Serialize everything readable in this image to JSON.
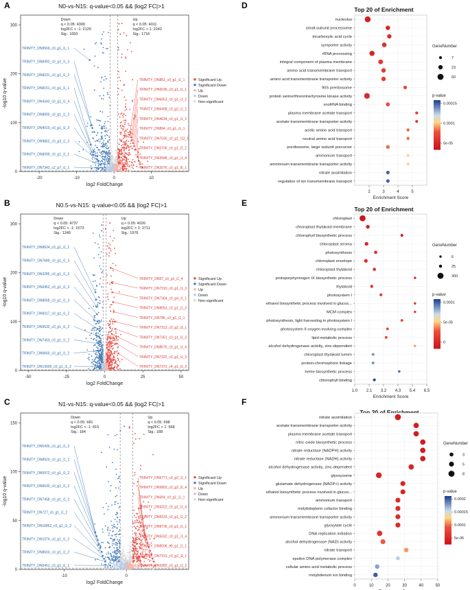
{
  "panel_letters": [
    "A",
    "B",
    "C",
    "D",
    "E",
    "F"
  ],
  "chart_data": [
    {
      "type": "scatter",
      "panel": "A",
      "title": "N0-vs-N15: q-value<0.05 && |log2 FC|>1",
      "xlabel": "log2 FoldChange",
      "ylabel": "-log10 q-value",
      "xlim": [
        -25,
        20
      ],
      "ylim": [
        0,
        320
      ],
      "xticks": [
        -20,
        -10,
        0,
        10
      ],
      "yticks": [
        0,
        100,
        200,
        300
      ],
      "qline": 1.3,
      "fc_cut": 1,
      "max_y": 305,
      "stats": {
        "down": [
          "Down",
          "q < 0.05: 4300",
          "log2FC < -1: 2129",
          "Sig.: 1650"
        ],
        "up": [
          "Up",
          "q < 0.05: 4011",
          "log2FC > 1: 2242",
          "Sig.: 1716"
        ]
      },
      "legend": [
        "Significant Up",
        "Significant Down",
        "Up",
        "Down",
        "Non-significant"
      ],
      "labels_down": [
        {
          "name": "TRINITY_DN9569_c0_g1_i1_1",
          "x": -6.5,
          "y": 228
        },
        {
          "name": "TRINITY_DN8492_c0_g2_i1_3",
          "x": -6.0,
          "y": 95
        },
        {
          "name": "TRINITY_DN8231_c0_g1_i1_2",
          "x": -5.8,
          "y": 89
        },
        {
          "name": "TRINITY_DN8151_c0_g1_i1_1",
          "x": -6.2,
          "y": 55
        },
        {
          "name": "TRINITY_DN4343_c0_g1_i1_4",
          "x": -5.5,
          "y": 40
        },
        {
          "name": "TRINITY_DN8895_c0_g1_i1_3",
          "x": -5.5,
          "y": 34
        },
        {
          "name": "TRINITY_DN4015_c0_g1_i1_3",
          "x": -4.5,
          "y": 25
        },
        {
          "name": "TRINITY_DN9862_c0_g3_i1_3",
          "x": -4.2,
          "y": 22
        },
        {
          "name": "TRINITY_DN8099_c0_g1_i1_1",
          "x": -3.6,
          "y": 14
        },
        {
          "name": "TRINITY_DN7342_c2_g7_i1_1",
          "x": -3.0,
          "y": 7
        }
      ],
      "labels_up": [
        {
          "name": "TRINITY_DN881_c0_g1_i1_1",
          "x": 4.2,
          "y": 75
        },
        {
          "name": "TRINITY_DN6036_c0_g1_i1_1",
          "x": 4.6,
          "y": 70
        },
        {
          "name": "TRINITY_DN6653_c0_g1_i1_2",
          "x": 4.8,
          "y": 64
        },
        {
          "name": "TRINITY_DN6408_c0_g2_i1_2",
          "x": 5.1,
          "y": 58
        },
        {
          "name": "TRINITY_DN4634_c0_g1_i1_2",
          "x": 5.4,
          "y": 52
        },
        {
          "name": "TRINITY_DN894_c0_g1_i1_1",
          "x": 5.8,
          "y": 45
        },
        {
          "name": "TRINITY_DN7030_c0_g1_i13_1",
          "x": 6.3,
          "y": 30
        },
        {
          "name": "TRINITY_DN5706_c0_g1_i2_2",
          "x": 6.6,
          "y": 22
        },
        {
          "name": "TRINITY_DN3588_c0_g1_i1_4",
          "x": 7.0,
          "y": 15
        },
        {
          "name": "TRINITY_DN3076_c0_g1_i5_1",
          "x": 7.6,
          "y": 8
        }
      ]
    },
    {
      "type": "scatter",
      "panel": "B",
      "title": "N0.5-vs-N15: q-value<0.05 && |log2 FC|>1",
      "xlabel": "log2 FoldChange",
      "ylabel": "-log10 q-value",
      "xlim": [
        -55,
        55
      ],
      "ylim": [
        0,
        320
      ],
      "xticks": [
        -50,
        -25,
        0,
        25,
        50
      ],
      "yticks": [
        0,
        100,
        200,
        300
      ],
      "qline": 1.3,
      "fc_cut": 1,
      "max_y": 305,
      "stats": {
        "down": [
          "Down",
          "q < 0.05: 4737",
          "log2FC < -1: 1573",
          "Sig.: 1245"
        ],
        "up": [
          "Up",
          "q < 0.05: 4026",
          "log2FC > 1: 2711",
          "Sig.: 1976"
        ]
      },
      "legend": [
        "Significant Up",
        "Significant Down",
        "Up",
        "Down",
        "Non-significant"
      ],
      "labels_down": [
        {
          "name": "TRINITY_DN8624_c0_g1_i1_1",
          "x": -6.0,
          "y": 160
        },
        {
          "name": "TRINITY_DN7689_c0_g1_i1_3",
          "x": -5.5,
          "y": 145
        },
        {
          "name": "TRINITY_DN3285_c0_g1_i1_2",
          "x": -5.2,
          "y": 130
        },
        {
          "name": "TRINITY_DN6452_c0_g1_i1_3",
          "x": -5.0,
          "y": 115
        },
        {
          "name": "TRINITY_DN8068_c0_g1_i1_3",
          "x": -4.8,
          "y": 100
        },
        {
          "name": "TRINITY_DN6017_c0_g1_i1_2",
          "x": -4.6,
          "y": 85
        },
        {
          "name": "TRINITY_DN5632_c0_g1_i1_2",
          "x": -4.4,
          "y": 70
        },
        {
          "name": "TRINITY_DN7453_c0_g1_i1_2",
          "x": -4.2,
          "y": 55
        },
        {
          "name": "TRINITY_DN6660_c0_g1_i1_2",
          "x": -3.8,
          "y": 40
        },
        {
          "name": "TRINITY_DN13006_c0_g1_i1_2",
          "x": -3.4,
          "y": 8
        }
      ],
      "labels_up": [
        {
          "name": "TRINITY_DN57_c0_g1_i1_4",
          "x": 4.0,
          "y": 210
        },
        {
          "name": "TRINITY_DN7310_c0_g1_i1_3",
          "x": 4.5,
          "y": 180
        },
        {
          "name": "TRINITY_DN7364_c0_g4_i1_1",
          "x": 5.0,
          "y": 160
        },
        {
          "name": "TRINITY_DN8053_c0_g1_i1_3",
          "x": 5.5,
          "y": 140
        },
        {
          "name": "TRINITY_DN786_c0_g1_i1_1",
          "x": 6.0,
          "y": 120
        },
        {
          "name": "TRINITY_DN7313_c0_g2_i3_1",
          "x": 6.5,
          "y": 100
        },
        {
          "name": "TRINITY_DN7351_c0_g1_i1_3",
          "x": 7.0,
          "y": 85
        },
        {
          "name": "TRINITY_DN8676_c0_g1_i1_4",
          "x": 7.5,
          "y": 70
        },
        {
          "name": "TRINITY_DN7322_c0_g1_i1_3",
          "x": 8.0,
          "y": 55
        },
        {
          "name": "TRINITY_DN7372_c4_g1_i3_3",
          "x": 9.0,
          "y": 35
        }
      ]
    },
    {
      "type": "scatter",
      "panel": "C",
      "title": "N1-vs-N15: q-value<0.05 && |log2 FC|>1",
      "xlabel": "log2 FoldChange",
      "ylabel": "-log10 q-value",
      "xlim": [
        -17,
        10
      ],
      "ylim": [
        0,
        160
      ],
      "xticks": [
        -10,
        0
      ],
      "yticks": [
        0,
        50,
        100,
        150
      ],
      "qline": 1.3,
      "fc_cut": 1,
      "max_y": 150,
      "stats": {
        "down": [
          "Down",
          "q < 0.05: 681",
          "log2FC < -1: 815",
          "Sig.: 184"
        ],
        "up": [
          "Up",
          "q < 0.05: 698",
          "log2FC > 1: 668",
          "Sig.: 188"
        ]
      },
      "legend": [
        "Significant Up",
        "Significant Down",
        "Up",
        "Down",
        "Non-significant"
      ],
      "labels_down": [
        {
          "name": "TRINITY_DN5435_c0_g1_i1_3",
          "x": -5.0,
          "y": 38
        },
        {
          "name": "TRINITY_DN8924_c0_g1_i1_2",
          "x": -4.8,
          "y": 34
        },
        {
          "name": "TRINITY_DN5972_c0_g1_i1_2",
          "x": -4.6,
          "y": 30
        },
        {
          "name": "TRINITY_DN6630_c0_g1_i1_2",
          "x": -4.4,
          "y": 26
        },
        {
          "name": "TRINITY_DN7458_c0_g1_i1_2",
          "x": -4.2,
          "y": 22
        },
        {
          "name": "TRINITY_DN727_c0_g1_i1_2",
          "x": -4.0,
          "y": 18
        },
        {
          "name": "TRINITY_DN10862_c0_g1_i1_2",
          "x": -3.8,
          "y": 14
        },
        {
          "name": "TRINITY_DN1074_c0_g1_i1_2",
          "x": -3.6,
          "y": 11
        },
        {
          "name": "TRINITY_DN8603_c0_g1_i1_2",
          "x": -3.4,
          "y": 8
        },
        {
          "name": "TRINITY_DN6401_c0_g1_i1_1",
          "x": -2.6,
          "y": 4
        }
      ],
      "labels_up": [
        {
          "name": "TRINITY_DN5771_c0_g2_i1_1",
          "x": 2.8,
          "y": 40
        },
        {
          "name": "TRINITY_DN5803_c0_g2_i2_4",
          "x": 3.0,
          "y": 35
        },
        {
          "name": "TRINITY_DN694_c0_g1_i1_1",
          "x": 3.2,
          "y": 31
        },
        {
          "name": "TRINITY_DN4222_c0_g1_i1_4",
          "x": 3.4,
          "y": 27
        },
        {
          "name": "TRINITY_DN5533_c0_g1_i1_2",
          "x": 3.6,
          "y": 23
        },
        {
          "name": "TRINITY_DN8736_c0_g1_i1_1",
          "x": 3.8,
          "y": 19
        },
        {
          "name": "TRINITY_DN5032_c0_g1_i1_4",
          "x": 4.0,
          "y": 15
        },
        {
          "name": "TRINITY_DN8506_c0_g1_i1_1",
          "x": 4.2,
          "y": 11
        },
        {
          "name": "TRINITY_DN7313_c0_g2_i3_1",
          "x": 4.4,
          "y": 8
        },
        {
          "name": "TRINITY_DN3282_c0_g1_i1_2",
          "x": 4.6,
          "y": 4
        }
      ]
    },
    {
      "type": "bubble",
      "panel": "D",
      "title": "Top 20 of Enrichment",
      "xlabel": "Enrichment Score",
      "xlim": [
        1,
        6
      ],
      "xticks": [
        2,
        3,
        4,
        5
      ],
      "size_legend_title": "GeneNumber",
      "size_legend": [
        7,
        23,
        60
      ],
      "color_legend_title": "p-value",
      "color_ticks": [
        "0.00015",
        "0.0001",
        "5e-05"
      ],
      "color_range": [
        0,
        0.00018
      ],
      "terms": [
        {
          "term": "nucleolus",
          "score": 1.9,
          "genes": 55,
          "p": 1e-05
        },
        {
          "term": "small-subunit processome",
          "score": 3.3,
          "genes": 25,
          "p": 2e-05
        },
        {
          "term": "tricarboxylic acid cycle",
          "score": 3.4,
          "genes": 22,
          "p": 2e-05
        },
        {
          "term": "symporter activity",
          "score": 3.05,
          "genes": 28,
          "p": 3e-05
        },
        {
          "term": "rRNA processing",
          "score": 2.2,
          "genes": 40,
          "p": 2e-05
        },
        {
          "term": "integral component of plasma membrane",
          "score": 2.8,
          "genes": 30,
          "p": 4e-05
        },
        {
          "term": "amino acid transmembrane transport",
          "score": 3.0,
          "genes": 25,
          "p": 4e-05
        },
        {
          "term": "amino acid transmembrane transporter activity",
          "score": 3.0,
          "genes": 25,
          "p": 4e-05
        },
        {
          "term": "90S preribosome",
          "score": 4.5,
          "genes": 12,
          "p": 5e-05
        },
        {
          "term": "protein serine/threonine/tyrosine kinase activity",
          "score": 1.85,
          "genes": 50,
          "p": 2e-05
        },
        {
          "term": "snoRNA binding",
          "score": 3.3,
          "genes": 18,
          "p": 6e-05
        },
        {
          "term": "plasma membrane acetate transport",
          "score": 5.3,
          "genes": 7,
          "p": 4e-05
        },
        {
          "term": "acetate transmembrane transporter activity",
          "score": 5.3,
          "genes": 7,
          "p": 4e-05
        },
        {
          "term": "acidic amino acid transport",
          "score": 4.7,
          "genes": 8,
          "p": 7e-05
        },
        {
          "term": "neutral amino acid transport",
          "score": 4.7,
          "genes": 8,
          "p": 7e-05
        },
        {
          "term": "preribosome, large subunit precursor",
          "score": 3.3,
          "genes": 14,
          "p": 7e-05
        },
        {
          "term": "ammonium transport",
          "score": 4.7,
          "genes": 7,
          "p": 0.0001
        },
        {
          "term": "ammonium transmembrane transporter activity",
          "score": 4.7,
          "genes": 7,
          "p": 0.0001
        },
        {
          "term": "nitrate assimilation",
          "score": 3.3,
          "genes": 12,
          "p": 0.00017
        },
        {
          "term": "regulation of ion transmembrane transport",
          "score": 3.3,
          "genes": 12,
          "p": 0.00017
        }
      ]
    },
    {
      "type": "bubble",
      "panel": "E",
      "title": "Top 20 of Enrichment",
      "xlabel": "Enrichment Score",
      "xlim": [
        1,
        6.5
      ],
      "xticks": [
        1.0,
        2.1,
        3.2,
        4.3,
        5.4,
        6.5
      ],
      "size_legend_title": "GeneNumber",
      "size_legend": [
        6,
        25,
        300
      ],
      "color_legend_title": "p-value",
      "color_ticks": [
        "0.0001",
        "5e-05",
        "0"
      ],
      "color_range": [
        0,
        0.00013
      ],
      "terms": [
        {
          "term": "chloroplast",
          "score": 1.6,
          "genes": 300,
          "p": 0.0
        },
        {
          "term": "chloroplast thylakoid membrane",
          "score": 2.0,
          "genes": 60,
          "p": 1e-05
        },
        {
          "term": "chlorophyll biosynthetic process",
          "score": 4.6,
          "genes": 18,
          "p": 1e-05
        },
        {
          "term": "chloroplast stroma",
          "score": 1.9,
          "genes": 55,
          "p": 1e-05
        },
        {
          "term": "photosynthesis",
          "score": 2.6,
          "genes": 35,
          "p": 2e-05
        },
        {
          "term": "chloroplast envelope",
          "score": 1.85,
          "genes": 55,
          "p": 2e-05
        },
        {
          "term": "chloroplast thylakoid",
          "score": 2.5,
          "genes": 30,
          "p": 2e-05
        },
        {
          "term": "protoporphyrinogen IX biosynthetic process",
          "score": 5.6,
          "genes": 8,
          "p": 2e-05
        },
        {
          "term": "thylakoid",
          "score": 2.3,
          "genes": 30,
          "p": 3e-05
        },
        {
          "term": "photosystem I",
          "score": 3.0,
          "genes": 20,
          "p": 3e-05
        },
        {
          "term": "ethanol biosynthetic process involved in glucos...",
          "score": 5.6,
          "genes": 7,
          "p": 3e-05
        },
        {
          "term": "MCM complex",
          "score": 5.6,
          "genes": 7,
          "p": 3e-05
        },
        {
          "term": "photosynthesis, light harvesting in photosystem I",
          "score": 4.6,
          "genes": 10,
          "p": 3e-05
        },
        {
          "term": "photosystem II oxygen evolving complex",
          "score": 3.5,
          "genes": 15,
          "p": 4e-05
        },
        {
          "term": "lipid metabolic process",
          "score": 3.4,
          "genes": 18,
          "p": 4e-05
        },
        {
          "term": "alcohol dehydrogenase activity, zinc-dependent",
          "score": 5.6,
          "genes": 7,
          "p": 6e-05
        },
        {
          "term": "chloroplast thylakoid lumen",
          "score": 2.4,
          "genes": 15,
          "p": 0.00011
        },
        {
          "term": "protein-chromophore linkage",
          "score": 2.4,
          "genes": 15,
          "p": 0.00011
        },
        {
          "term": "heme biosynthetic process",
          "score": 4.4,
          "genes": 8,
          "p": 0.00012
        },
        {
          "term": "chlorophyll binding",
          "score": 2.5,
          "genes": 15,
          "p": 0.00013
        }
      ]
    },
    {
      "type": "bubble",
      "panel": "F",
      "title": "Top 20 of Enrichment",
      "xlabel": "Enrichment Score",
      "xlim": [
        0,
        50
      ],
      "xticks": [
        0,
        10,
        20,
        30,
        40,
        50
      ],
      "size_legend_title": "GeneNumber",
      "size_legend": [
        3,
        5,
        8
      ],
      "color_legend_title": "p-value",
      "color_ticks": [
        "0.0002",
        "0.00015",
        "0.0001",
        "5e-05"
      ],
      "color_range": [
        0,
        0.00022
      ],
      "terms": [
        {
          "term": "nitrate assimilation",
          "score": 26,
          "genes": 8,
          "p": 1e-05
        },
        {
          "term": "acetate transmembrane transporter activity",
          "score": 37,
          "genes": 6,
          "p": 1e-05
        },
        {
          "term": "plasma membrane acetate transport",
          "score": 37,
          "genes": 6,
          "p": 1e-05
        },
        {
          "term": "nitric oxide biosynthetic process",
          "score": 41,
          "genes": 6,
          "p": 1e-05
        },
        {
          "term": "nitrate reductase (NADPH) activity",
          "score": 41,
          "genes": 6,
          "p": 1e-05
        },
        {
          "term": "nitrate reductase (NADH) activity",
          "score": 41,
          "genes": 6,
          "p": 1e-05
        },
        {
          "term": "alcohol dehydrogenase activity, zinc-dependent",
          "score": 34,
          "genes": 6,
          "p": 2e-05
        },
        {
          "term": "glyoxysome",
          "score": 14.5,
          "genes": 7,
          "p": 2e-05
        },
        {
          "term": "glutamate dehydrogenase (NADP+) activity",
          "score": 29,
          "genes": 5,
          "p": 2e-05
        },
        {
          "term": "ethanol biosynthetic process involved in glucos...",
          "score": 29,
          "genes": 5,
          "p": 2e-05
        },
        {
          "term": "ammonium transport",
          "score": 26,
          "genes": 5,
          "p": 3e-05
        },
        {
          "term": "molybdopterin cofactor binding",
          "score": 26,
          "genes": 5,
          "p": 3e-05
        },
        {
          "term": "ammonium transmembrane transporter activity",
          "score": 26,
          "genes": 5,
          "p": 3e-05
        },
        {
          "term": "glyoxylate cycle",
          "score": 26,
          "genes": 5,
          "p": 3e-05
        },
        {
          "term": "DNA replication initiation",
          "score": 15,
          "genes": 6,
          "p": 4e-05
        },
        {
          "term": "alcohol dehydrogenase (NAD) activity",
          "score": 17,
          "genes": 5,
          "p": 8e-05
        },
        {
          "term": "nitrate transport",
          "score": 31,
          "genes": 4,
          "p": 0.0001
        },
        {
          "term": "epsilon DNA polymerase complex",
          "score": 26,
          "genes": 3,
          "p": 0.00016
        },
        {
          "term": "cellular amino acid metabolic process",
          "score": 13.5,
          "genes": 4,
          "p": 0.00018
        },
        {
          "term": "molybdenum ion binding",
          "score": 12.5,
          "genes": 4,
          "p": 0.00021
        }
      ]
    }
  ]
}
